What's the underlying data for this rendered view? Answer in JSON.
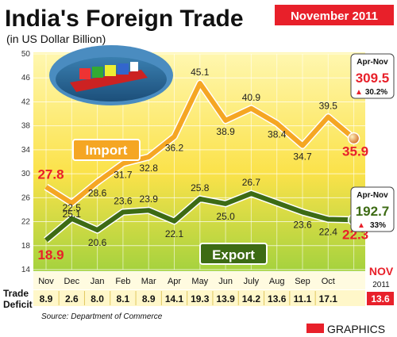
{
  "header": {
    "title": "India's Foreign Trade",
    "subtitle": "(in US Dollar Billion)",
    "badge": "November 2011"
  },
  "chart_data": {
    "type": "line",
    "categories": [
      "Nov",
      "Dec",
      "Jan",
      "Feb",
      "Mar",
      "Apr",
      "May",
      "Jun",
      "July",
      "Aug",
      "Sep",
      "Oct",
      "Nov"
    ],
    "ylim": [
      14,
      50
    ],
    "yticks": [
      14,
      18,
      22,
      26,
      30,
      34,
      38,
      42,
      46,
      50
    ],
    "grid": true,
    "series": [
      {
        "name": "Import",
        "color": "#f5a623",
        "values": [
          27.8,
          25.1,
          28.6,
          31.7,
          32.8,
          36.2,
          45.1,
          38.9,
          40.9,
          38.4,
          34.7,
          39.5,
          35.9
        ],
        "labels": [
          "27.8",
          "25.1",
          "28.6",
          "31.7",
          "32.8",
          "36.2",
          "45.1",
          "38.9",
          "40.9",
          "38.4",
          "34.7",
          "39.5",
          "35.9"
        ]
      },
      {
        "name": "Export",
        "color": "#3d6b14",
        "values": [
          18.9,
          22.5,
          20.6,
          23.6,
          23.9,
          22.1,
          25.8,
          25.0,
          26.7,
          null,
          23.6,
          22.4,
          22.3
        ],
        "labels": [
          "18.9",
          "22.5",
          "20.6",
          "23.6",
          "23.9",
          "22.1",
          "25.8",
          "25.0",
          "26.7",
          "",
          "23.6",
          "22.4",
          "22.3"
        ]
      }
    ],
    "trade_deficit": {
      "label_line1": "Trade",
      "label_line2": "Deficit",
      "values": [
        "8.9",
        "2.6",
        "8.0",
        "8.1",
        "8.9",
        "14.1",
        "19.3",
        "13.9",
        "14.2",
        "13.6",
        "11.1",
        "17.1",
        "13.6"
      ]
    },
    "last_month": {
      "label": "NOV",
      "year": "2011"
    },
    "import_summary": {
      "period": "Apr-Nov",
      "value": "309.5",
      "change": "30.2%"
    },
    "export_summary": {
      "period": "Apr-Nov",
      "value": "192.7",
      "change": "33%"
    },
    "highlight_color": "#e8202a"
  },
  "footer": {
    "source": "Source: Department of Commerce",
    "brand": "GRAPHICS"
  }
}
